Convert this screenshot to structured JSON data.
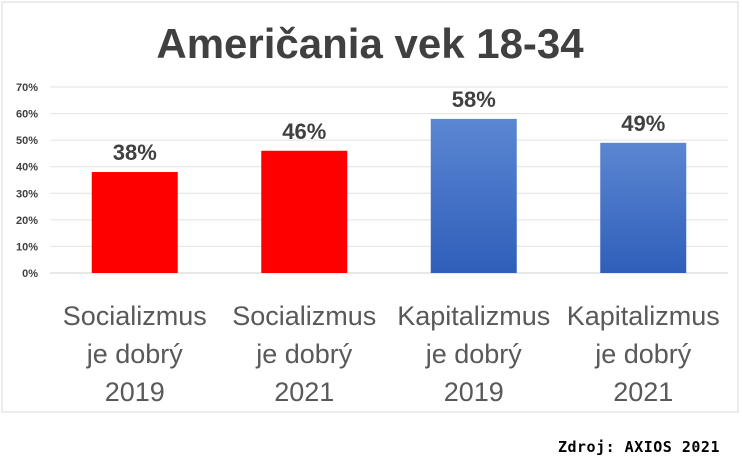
{
  "chart_data": {
    "type": "bar",
    "title": "Američania vek 18-34",
    "categories": [
      [
        "Socializmus",
        "je dobrý",
        "2019"
      ],
      [
        "Socializmus",
        "je dobrý",
        "2021"
      ],
      [
        "Kapitalizmus",
        "je dobrý",
        "2019"
      ],
      [
        "Kapitalizmus",
        "je dobrý",
        "2021"
      ]
    ],
    "values": [
      38,
      46,
      58,
      49
    ],
    "data_labels": [
      "38%",
      "46%",
      "58%",
      "49%"
    ],
    "bar_colors": [
      "#ff0000",
      "#ff0000",
      "#4472c4",
      "#4472c4"
    ],
    "bar_gradient": [
      null,
      null,
      [
        "#5b86d2",
        "#2f5fba"
      ],
      [
        "#5b86d2",
        "#2f5fba"
      ]
    ],
    "ylim": [
      0,
      70
    ],
    "yticks": [
      0,
      10,
      20,
      30,
      40,
      50,
      60,
      70
    ],
    "ytick_labels": [
      "0%",
      "10%",
      "20%",
      "30%",
      "40%",
      "50%",
      "60%",
      "70%"
    ],
    "grid": true,
    "legend": "none",
    "xlabel": "",
    "ylabel": ""
  },
  "source": "Zdroj: AXIOS 2021"
}
